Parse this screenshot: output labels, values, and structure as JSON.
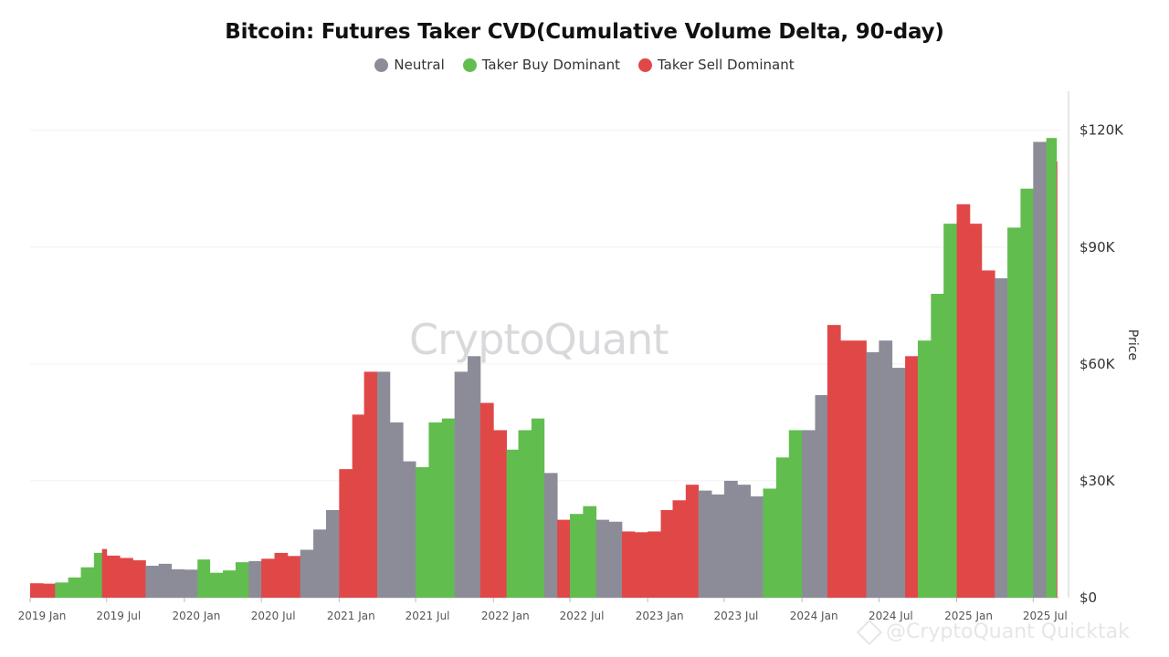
{
  "chart_data": {
    "type": "bar",
    "title": "Bitcoin: Futures Taker CVD(Cumulative Volume Delta, 90-day)",
    "ylabel": "Price",
    "xlabel": "",
    "ylim": [
      0,
      130000
    ],
    "yticks": [
      {
        "value": 0,
        "label": "$0"
      },
      {
        "value": 30000,
        "label": "$30K"
      },
      {
        "value": 60000,
        "label": "$60K"
      },
      {
        "value": 90000,
        "label": "$90K"
      },
      {
        "value": 120000,
        "label": "$120K"
      }
    ],
    "xticks": [
      {
        "date": "2019-01",
        "label": "2019 Jan"
      },
      {
        "date": "2019-07",
        "label": "2019 Jul"
      },
      {
        "date": "2020-01",
        "label": "2020 Jan"
      },
      {
        "date": "2020-07",
        "label": "2020 Jul"
      },
      {
        "date": "2021-01",
        "label": "2021 Jan"
      },
      {
        "date": "2021-07",
        "label": "2021 Jul"
      },
      {
        "date": "2022-01",
        "label": "2022 Jan"
      },
      {
        "date": "2022-07",
        "label": "2022 Jul"
      },
      {
        "date": "2023-01",
        "label": "2023 Jan"
      },
      {
        "date": "2023-07",
        "label": "2023 Jul"
      },
      {
        "date": "2024-01",
        "label": "2024 Jan"
      },
      {
        "date": "2024-07",
        "label": "2024 Jul"
      },
      {
        "date": "2025-01",
        "label": "2025 Jan"
      },
      {
        "date": "2025-07",
        "label": "2025 Jul"
      }
    ],
    "grid": true,
    "legend_position": "top-center",
    "series": [
      {
        "name": "Neutral",
        "color": "#8c8c99"
      },
      {
        "name": "Taker Buy Dominant",
        "color": "#62bd4f"
      },
      {
        "name": "Taker Sell Dominant",
        "color": "#e04848"
      }
    ],
    "x": [
      "2019-01-01",
      "2019-02-01",
      "2019-03-01",
      "2019-04-01",
      "2019-05-01",
      "2019-06-01",
      "2019-06-20",
      "2019-07-01",
      "2019-08-01",
      "2019-09-01",
      "2019-10-01",
      "2019-11-01",
      "2019-12-01",
      "2020-01-01",
      "2020-02-01",
      "2020-03-01",
      "2020-04-01",
      "2020-05-01",
      "2020-06-01",
      "2020-07-01",
      "2020-08-01",
      "2020-09-01",
      "2020-10-01",
      "2020-11-01",
      "2020-12-01",
      "2021-01-01",
      "2021-02-01",
      "2021-03-01",
      "2021-04-01",
      "2021-05-01",
      "2021-06-01",
      "2021-07-01",
      "2021-08-01",
      "2021-09-01",
      "2021-10-01",
      "2021-11-01",
      "2021-12-01",
      "2022-01-01",
      "2022-02-01",
      "2022-03-01",
      "2022-04-01",
      "2022-05-01",
      "2022-06-01",
      "2022-07-01",
      "2022-08-01",
      "2022-09-01",
      "2022-10-01",
      "2022-11-01",
      "2022-12-01",
      "2023-01-01",
      "2023-02-01",
      "2023-03-01",
      "2023-04-01",
      "2023-05-01",
      "2023-06-01",
      "2023-07-01",
      "2023-08-01",
      "2023-09-01",
      "2023-10-01",
      "2023-11-01",
      "2023-12-01",
      "2024-01-01",
      "2024-02-01",
      "2024-03-01",
      "2024-04-01",
      "2024-05-01",
      "2024-06-01",
      "2024-07-01",
      "2024-08-01",
      "2024-09-01",
      "2024-10-01",
      "2024-11-01",
      "2024-12-01",
      "2025-01-01",
      "2025-02-01",
      "2025-03-01",
      "2025-04-01",
      "2025-05-01",
      "2025-06-01",
      "2025-07-01",
      "2025-08-01",
      "2025-08-25"
    ],
    "values": [
      3700,
      3600,
      3900,
      5200,
      7800,
      11500,
      12500,
      10800,
      10200,
      9600,
      8200,
      8700,
      7300,
      7200,
      9800,
      6400,
      7000,
      9100,
      9400,
      10000,
      11500,
      10700,
      12300,
      17500,
      22500,
      33000,
      47000,
      58000,
      58000,
      45000,
      35000,
      33500,
      45000,
      46000,
      58000,
      62000,
      50000,
      43000,
      38000,
      43000,
      46000,
      32000,
      20000,
      21500,
      23500,
      20000,
      19500,
      17000,
      16800,
      17000,
      22500,
      25000,
      29000,
      27500,
      26500,
      30000,
      29000,
      26000,
      28000,
      36000,
      43000,
      43000,
      52000,
      70000,
      66000,
      66000,
      63000,
      66000,
      59000,
      62000,
      66000,
      78000,
      96000,
      101000,
      96000,
      84000,
      82000,
      95000,
      105000,
      117000,
      118000,
      112000
    ],
    "categories_by_point": [
      "Taker Sell Dominant",
      "Taker Sell Dominant",
      "Taker Buy Dominant",
      "Taker Buy Dominant",
      "Taker Buy Dominant",
      "Taker Buy Dominant",
      "Taker Sell Dominant",
      "Taker Sell Dominant",
      "Taker Sell Dominant",
      "Taker Sell Dominant",
      "Neutral",
      "Neutral",
      "Neutral",
      "Neutral",
      "Taker Buy Dominant",
      "Taker Buy Dominant",
      "Taker Buy Dominant",
      "Taker Buy Dominant",
      "Neutral",
      "Taker Sell Dominant",
      "Taker Sell Dominant",
      "Taker Sell Dominant",
      "Neutral",
      "Neutral",
      "Neutral",
      "Taker Sell Dominant",
      "Taker Sell Dominant",
      "Taker Sell Dominant",
      "Neutral",
      "Neutral",
      "Neutral",
      "Taker Buy Dominant",
      "Taker Buy Dominant",
      "Taker Buy Dominant",
      "Neutral",
      "Neutral",
      "Taker Sell Dominant",
      "Taker Sell Dominant",
      "Taker Buy Dominant",
      "Taker Buy Dominant",
      "Taker Buy Dominant",
      "Neutral",
      "Taker Sell Dominant",
      "Taker Buy Dominant",
      "Taker Buy Dominant",
      "Neutral",
      "Neutral",
      "Taker Sell Dominant",
      "Taker Sell Dominant",
      "Taker Sell Dominant",
      "Taker Sell Dominant",
      "Taker Sell Dominant",
      "Taker Sell Dominant",
      "Neutral",
      "Neutral",
      "Neutral",
      "Neutral",
      "Neutral",
      "Taker Buy Dominant",
      "Taker Buy Dominant",
      "Taker Buy Dominant",
      "Neutral",
      "Neutral",
      "Taker Sell Dominant",
      "Taker Sell Dominant",
      "Taker Sell Dominant",
      "Neutral",
      "Neutral",
      "Neutral",
      "Taker Sell Dominant",
      "Taker Buy Dominant",
      "Taker Buy Dominant",
      "Taker Buy Dominant",
      "Taker Sell Dominant",
      "Taker Sell Dominant",
      "Taker Sell Dominant",
      "Neutral",
      "Taker Buy Dominant",
      "Taker Buy Dominant",
      "Neutral",
      "Taker Buy Dominant",
      "Taker Sell Dominant"
    ]
  },
  "watermark": "CryptoQuant",
  "footer_brand": "@CryptoQuant Quicktak"
}
